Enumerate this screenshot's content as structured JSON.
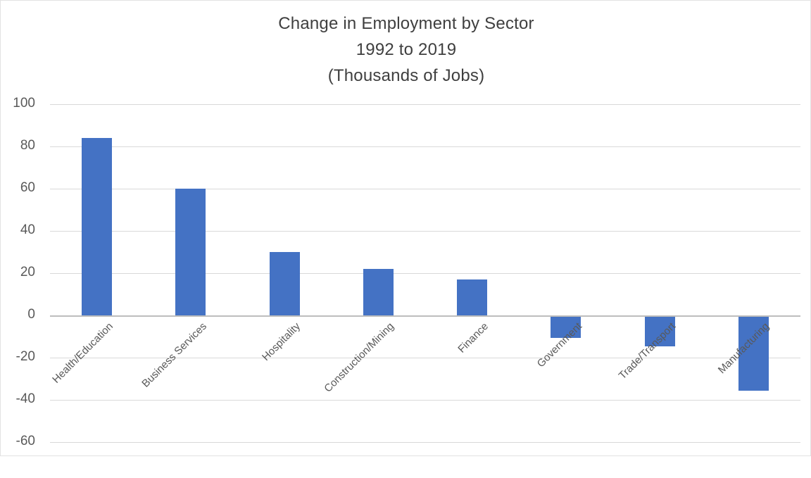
{
  "chart_data": {
    "type": "bar",
    "title_lines": [
      "Change in Employment by Sector",
      "1992 to 2019",
      "(Thousands of Jobs)"
    ],
    "categories": [
      "Health/Education",
      "Business Services",
      "Hospitality",
      "Construction/Mining",
      "Finance",
      "Government",
      "Trade/Transport",
      "Manufacturing"
    ],
    "values": [
      84,
      60,
      30,
      22,
      17,
      -10,
      -14,
      -35
    ],
    "xlabel": "",
    "ylabel": "",
    "y_ticks": [
      100,
      80,
      60,
      40,
      20,
      0,
      -20,
      -40,
      -60
    ],
    "ylim": [
      -60,
      100
    ],
    "grid": true,
    "legend_position": "none",
    "colors": {
      "bar": "#4472C4",
      "gridline": "#D9D9D9",
      "zero_axis": "#BDBDBD",
      "tick_text": "#595959",
      "title_text": "#3F3F3F",
      "background": "#FFFFFF"
    }
  }
}
